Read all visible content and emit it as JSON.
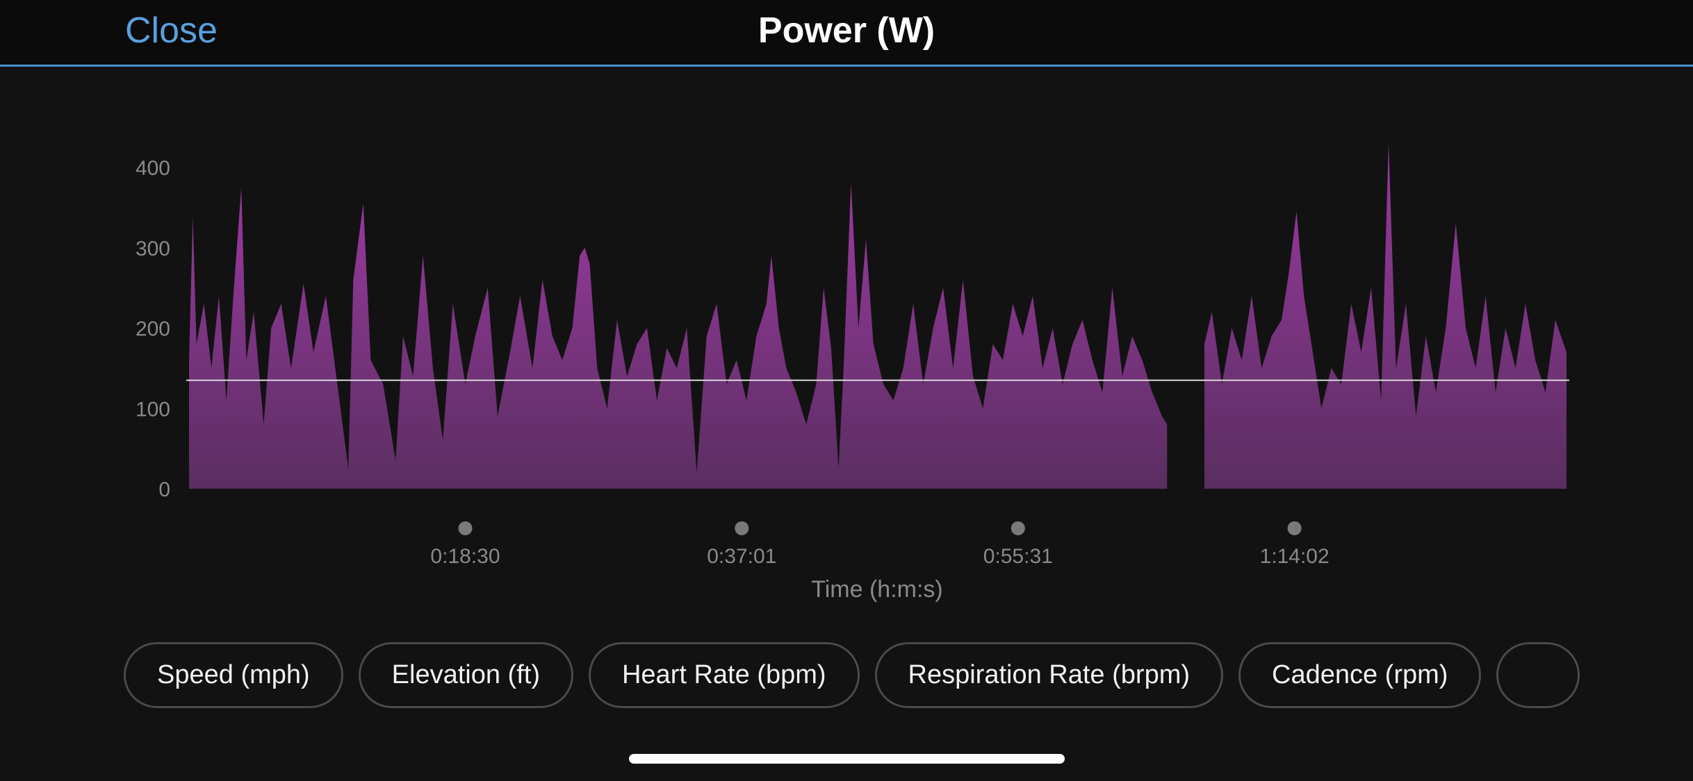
{
  "header": {
    "close_label": "Close",
    "title": "Power (W)"
  },
  "colors": {
    "accent": "#5aa0e0",
    "area_top": "#9a3aa0",
    "area_bottom": "#5a2e60",
    "avg_line": "#d8d8d8",
    "background": "#121212"
  },
  "chart_data": {
    "type": "area",
    "title": "",
    "xlabel": "Time (h:m:s)",
    "ylabel": "",
    "ylim": [
      0,
      400
    ],
    "y_ticks": [
      "0",
      "100",
      "200",
      "300",
      "400"
    ],
    "x_ticks": [
      {
        "label": "0:18:30",
        "seconds": 1110
      },
      {
        "label": "0:37:01",
        "seconds": 2221
      },
      {
        "label": "0:55:31",
        "seconds": 3331
      },
      {
        "label": "1:14:02",
        "seconds": 4442
      }
    ],
    "x_range_seconds": [
      0,
      5535
    ],
    "average_line": 135,
    "gap_seconds": [
      3930,
      4080
    ],
    "series": [
      {
        "values": [
          {
            "t": 0,
            "w": 160
          },
          {
            "t": 15,
            "w": 338
          },
          {
            "t": 30,
            "w": 180
          },
          {
            "t": 60,
            "w": 230
          },
          {
            "t": 90,
            "w": 150
          },
          {
            "t": 120,
            "w": 240
          },
          {
            "t": 150,
            "w": 110
          },
          {
            "t": 180,
            "w": 250
          },
          {
            "t": 210,
            "w": 375
          },
          {
            "t": 230,
            "w": 160
          },
          {
            "t": 260,
            "w": 220
          },
          {
            "t": 300,
            "w": 80
          },
          {
            "t": 330,
            "w": 200
          },
          {
            "t": 370,
            "w": 230
          },
          {
            "t": 410,
            "w": 150
          },
          {
            "t": 460,
            "w": 255
          },
          {
            "t": 500,
            "w": 170
          },
          {
            "t": 550,
            "w": 240
          },
          {
            "t": 600,
            "w": 120
          },
          {
            "t": 640,
            "w": 25
          },
          {
            "t": 660,
            "w": 260
          },
          {
            "t": 700,
            "w": 355
          },
          {
            "t": 730,
            "w": 160
          },
          {
            "t": 780,
            "w": 130
          },
          {
            "t": 830,
            "w": 35
          },
          {
            "t": 860,
            "w": 190
          },
          {
            "t": 900,
            "w": 140
          },
          {
            "t": 940,
            "w": 290
          },
          {
            "t": 980,
            "w": 150
          },
          {
            "t": 1020,
            "w": 60
          },
          {
            "t": 1060,
            "w": 230
          },
          {
            "t": 1110,
            "w": 130
          },
          {
            "t": 1150,
            "w": 190
          },
          {
            "t": 1200,
            "w": 250
          },
          {
            "t": 1240,
            "w": 90
          },
          {
            "t": 1290,
            "w": 170
          },
          {
            "t": 1330,
            "w": 240
          },
          {
            "t": 1380,
            "w": 150
          },
          {
            "t": 1420,
            "w": 260
          },
          {
            "t": 1460,
            "w": 190
          },
          {
            "t": 1500,
            "w": 160
          },
          {
            "t": 1540,
            "w": 200
          },
          {
            "t": 1570,
            "w": 290
          },
          {
            "t": 1590,
            "w": 300
          },
          {
            "t": 1610,
            "w": 280
          },
          {
            "t": 1640,
            "w": 150
          },
          {
            "t": 1680,
            "w": 100
          },
          {
            "t": 1720,
            "w": 210
          },
          {
            "t": 1760,
            "w": 140
          },
          {
            "t": 1800,
            "w": 180
          },
          {
            "t": 1840,
            "w": 200
          },
          {
            "t": 1880,
            "w": 110
          },
          {
            "t": 1920,
            "w": 175
          },
          {
            "t": 1960,
            "w": 150
          },
          {
            "t": 2000,
            "w": 200
          },
          {
            "t": 2040,
            "w": 20
          },
          {
            "t": 2080,
            "w": 190
          },
          {
            "t": 2120,
            "w": 230
          },
          {
            "t": 2160,
            "w": 130
          },
          {
            "t": 2200,
            "w": 160
          },
          {
            "t": 2240,
            "w": 110
          },
          {
            "t": 2280,
            "w": 190
          },
          {
            "t": 2320,
            "w": 230
          },
          {
            "t": 2340,
            "w": 290
          },
          {
            "t": 2370,
            "w": 200
          },
          {
            "t": 2400,
            "w": 150
          },
          {
            "t": 2440,
            "w": 120
          },
          {
            "t": 2480,
            "w": 80
          },
          {
            "t": 2520,
            "w": 130
          },
          {
            "t": 2550,
            "w": 250
          },
          {
            "t": 2580,
            "w": 175
          },
          {
            "t": 2610,
            "w": 25
          },
          {
            "t": 2630,
            "w": 150
          },
          {
            "t": 2660,
            "w": 380
          },
          {
            "t": 2690,
            "w": 200
          },
          {
            "t": 2720,
            "w": 310
          },
          {
            "t": 2750,
            "w": 180
          },
          {
            "t": 2790,
            "w": 130
          },
          {
            "t": 2830,
            "w": 110
          },
          {
            "t": 2870,
            "w": 150
          },
          {
            "t": 2910,
            "w": 230
          },
          {
            "t": 2950,
            "w": 130
          },
          {
            "t": 2990,
            "w": 200
          },
          {
            "t": 3030,
            "w": 250
          },
          {
            "t": 3070,
            "w": 150
          },
          {
            "t": 3110,
            "w": 260
          },
          {
            "t": 3150,
            "w": 140
          },
          {
            "t": 3190,
            "w": 100
          },
          {
            "t": 3230,
            "w": 180
          },
          {
            "t": 3270,
            "w": 160
          },
          {
            "t": 3310,
            "w": 230
          },
          {
            "t": 3350,
            "w": 190
          },
          {
            "t": 3390,
            "w": 240
          },
          {
            "t": 3430,
            "w": 150
          },
          {
            "t": 3470,
            "w": 200
          },
          {
            "t": 3510,
            "w": 130
          },
          {
            "t": 3550,
            "w": 180
          },
          {
            "t": 3590,
            "w": 210
          },
          {
            "t": 3630,
            "w": 160
          },
          {
            "t": 3670,
            "w": 120
          },
          {
            "t": 3710,
            "w": 250
          },
          {
            "t": 3750,
            "w": 140
          },
          {
            "t": 3790,
            "w": 190
          },
          {
            "t": 3830,
            "w": 160
          },
          {
            "t": 3870,
            "w": 120
          },
          {
            "t": 3910,
            "w": 90
          },
          {
            "t": 3930,
            "w": 80
          },
          {
            "t": 4080,
            "w": 180
          },
          {
            "t": 4110,
            "w": 220
          },
          {
            "t": 4150,
            "w": 130
          },
          {
            "t": 4190,
            "w": 200
          },
          {
            "t": 4230,
            "w": 160
          },
          {
            "t": 4270,
            "w": 240
          },
          {
            "t": 4310,
            "w": 150
          },
          {
            "t": 4350,
            "w": 190
          },
          {
            "t": 4390,
            "w": 210
          },
          {
            "t": 4420,
            "w": 270
          },
          {
            "t": 4450,
            "w": 345
          },
          {
            "t": 4480,
            "w": 240
          },
          {
            "t": 4510,
            "w": 180
          },
          {
            "t": 4550,
            "w": 100
          },
          {
            "t": 4590,
            "w": 150
          },
          {
            "t": 4630,
            "w": 130
          },
          {
            "t": 4670,
            "w": 230
          },
          {
            "t": 4710,
            "w": 170
          },
          {
            "t": 4750,
            "w": 250
          },
          {
            "t": 4790,
            "w": 110
          },
          {
            "t": 4820,
            "w": 430
          },
          {
            "t": 4850,
            "w": 150
          },
          {
            "t": 4890,
            "w": 230
          },
          {
            "t": 4930,
            "w": 90
          },
          {
            "t": 4970,
            "w": 190
          },
          {
            "t": 5010,
            "w": 120
          },
          {
            "t": 5050,
            "w": 200
          },
          {
            "t": 5090,
            "w": 330
          },
          {
            "t": 5130,
            "w": 200
          },
          {
            "t": 5170,
            "w": 150
          },
          {
            "t": 5210,
            "w": 240
          },
          {
            "t": 5250,
            "w": 120
          },
          {
            "t": 5290,
            "w": 200
          },
          {
            "t": 5330,
            "w": 150
          },
          {
            "t": 5370,
            "w": 230
          },
          {
            "t": 5410,
            "w": 160
          },
          {
            "t": 5450,
            "w": 120
          },
          {
            "t": 5490,
            "w": 210
          },
          {
            "t": 5535,
            "w": 170
          }
        ]
      }
    ]
  },
  "metric_pills": [
    "Speed (mph)",
    "Elevation (ft)",
    "Heart Rate (bpm)",
    "Respiration Rate (brpm)",
    "Cadence (rpm)",
    ""
  ]
}
